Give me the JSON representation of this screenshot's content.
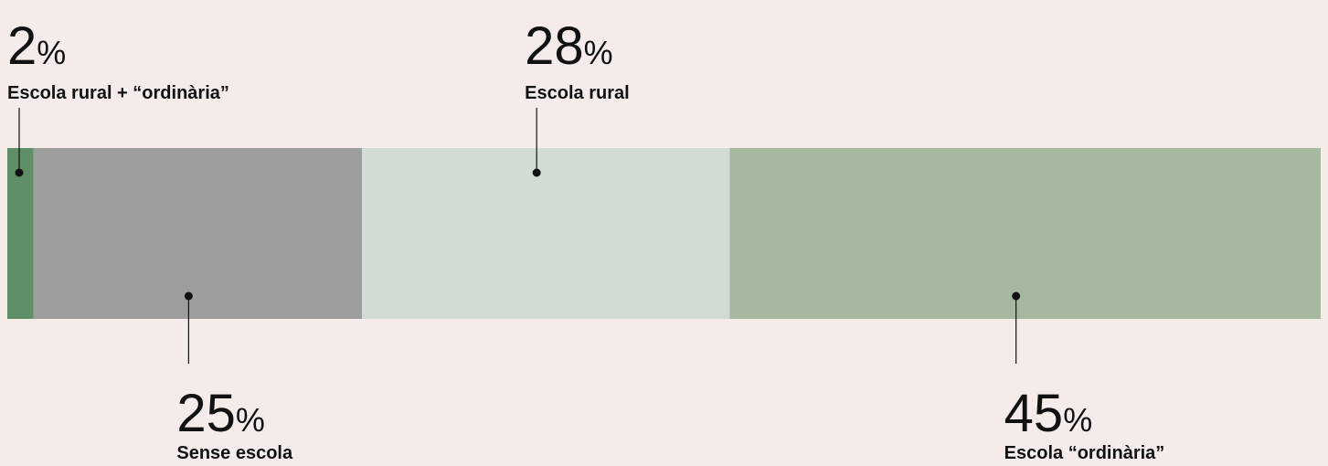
{
  "chart_data": {
    "type": "bar",
    "orientation": "horizontal",
    "stacked": true,
    "xlim": [
      0,
      100
    ],
    "series": [
      {
        "name": "Escola rural + “ordinària”",
        "color": "#5e8f68",
        "values": [
          2
        ],
        "value_labels": [
          "2%"
        ]
      },
      {
        "name": "Sense escola",
        "color": "#9d9d9b",
        "values": [
          25
        ],
        "value_labels": [
          "25%"
        ]
      },
      {
        "name": "Escola rural",
        "color": "#d3dcd2",
        "values": [
          28
        ],
        "value_labels": [
          "28%"
        ]
      },
      {
        "name": "Escola “ordinària”",
        "color": "#a6b9a0",
        "values": [
          45
        ],
        "value_labels": [
          "45%"
        ]
      }
    ]
  }
}
